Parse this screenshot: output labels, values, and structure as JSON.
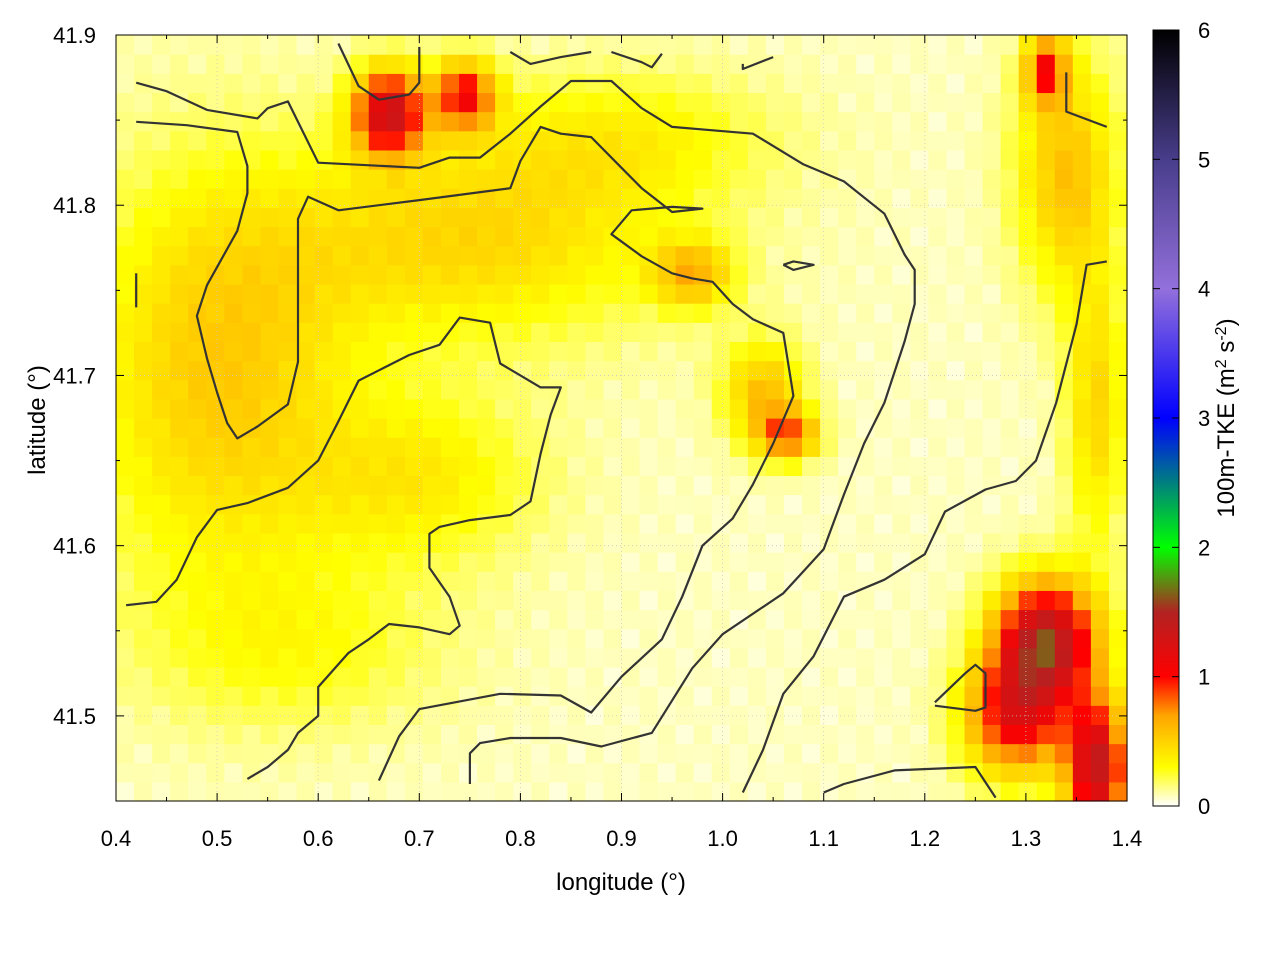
{
  "chart_data": {
    "type": "heatmap",
    "title": "",
    "xlabel": "longitude (°)",
    "ylabel": "latitude (°)",
    "xlim": [
      0.4,
      1.4
    ],
    "ylim": [
      41.45,
      41.9
    ],
    "x_ticks": [
      "0.4",
      "0.5",
      "0.6",
      "0.7",
      "0.8",
      "0.9",
      "1.0",
      "1.1",
      "1.2",
      "1.3",
      "1.4"
    ],
    "y_ticks": [
      "41.5",
      "41.6",
      "41.7",
      "41.8",
      "41.9"
    ],
    "grid": true,
    "colorbar": {
      "label_prefix": "100m-TKE (m",
      "label_sup1": "2",
      "label_mid": " s",
      "label_sup2": "-2",
      "label_suffix": ")",
      "range": [
        0,
        6
      ],
      "ticks": [
        "0",
        "1",
        "2",
        "3",
        "4",
        "5",
        "6"
      ],
      "palette": [
        {
          "v": 0.0,
          "c": "#ffffff"
        },
        {
          "v": 0.3,
          "c": "#ffff00"
        },
        {
          "v": 0.7,
          "c": "#ffa500"
        },
        {
          "v": 1.0,
          "c": "#ff0000"
        },
        {
          "v": 1.5,
          "c": "#b22222"
        },
        {
          "v": 2.0,
          "c": "#00ff00"
        },
        {
          "v": 3.0,
          "c": "#0000ff"
        },
        {
          "v": 4.0,
          "c": "#9370db"
        },
        {
          "v": 5.0,
          "c": "#483d8b"
        },
        {
          "v": 6.0,
          "c": "#000000"
        }
      ]
    },
    "field_hotspots": [
      {
        "lon": 0.67,
        "lat": 41.855,
        "tke": 1.2,
        "rlon": 0.035,
        "rlat": 0.025
      },
      {
        "lon": 0.745,
        "lat": 41.865,
        "tke": 0.9,
        "rlon": 0.03,
        "rlat": 0.02
      },
      {
        "lon": 0.5,
        "lat": 41.7,
        "tke": 0.45,
        "rlon": 0.13,
        "rlat": 0.12
      },
      {
        "lon": 0.75,
        "lat": 41.78,
        "tke": 0.4,
        "rlon": 0.2,
        "rlat": 0.06
      },
      {
        "lon": 0.7,
        "lat": 41.64,
        "tke": 0.3,
        "rlon": 0.12,
        "rlat": 0.05
      },
      {
        "lon": 0.97,
        "lat": 41.76,
        "tke": 0.5,
        "rlon": 0.04,
        "rlat": 0.02
      },
      {
        "lon": 1.04,
        "lat": 41.69,
        "tke": 0.5,
        "rlon": 0.04,
        "rlat": 0.03
      },
      {
        "lon": 1.065,
        "lat": 41.665,
        "tke": 0.7,
        "rlon": 0.03,
        "rlat": 0.015
      },
      {
        "lon": 1.32,
        "lat": 41.545,
        "tke": 1.4,
        "rlon": 0.05,
        "rlat": 0.035
      },
      {
        "lon": 1.29,
        "lat": 41.5,
        "tke": 1.0,
        "rlon": 0.05,
        "rlat": 0.035
      },
      {
        "lon": 1.37,
        "lat": 41.47,
        "tke": 1.3,
        "rlon": 0.03,
        "rlat": 0.04
      },
      {
        "lon": 1.34,
        "lat": 41.82,
        "tke": 0.5,
        "rlon": 0.05,
        "rlat": 0.07
      },
      {
        "lon": 1.32,
        "lat": 41.88,
        "tke": 0.8,
        "rlon": 0.02,
        "rlat": 0.02
      },
      {
        "lon": 1.37,
        "lat": 41.68,
        "tke": 0.4,
        "rlon": 0.03,
        "rlat": 0.08
      },
      {
        "lon": 0.58,
        "lat": 41.54,
        "tke": 0.2,
        "rlon": 0.15,
        "rlat": 0.05
      },
      {
        "lon": 0.9,
        "lat": 41.84,
        "tke": 0.25,
        "rlon": 0.15,
        "rlat": 0.04
      }
    ],
    "contours": [
      [
        [
          0.42,
          41.872
        ],
        [
          0.45,
          41.867
        ],
        [
          0.49,
          41.856
        ],
        [
          0.54,
          41.851
        ],
        [
          0.55,
          41.857
        ],
        [
          0.57,
          41.861
        ],
        [
          0.6,
          41.825
        ],
        [
          0.7,
          41.822
        ],
        [
          0.73,
          41.828
        ],
        [
          0.76,
          41.828
        ],
        [
          0.79,
          41.842
        ],
        [
          0.82,
          41.858
        ],
        [
          0.85,
          41.873
        ],
        [
          0.89,
          41.873
        ],
        [
          0.92,
          41.857
        ],
        [
          0.95,
          41.846
        ],
        [
          1.03,
          41.842
        ],
        [
          1.08,
          41.824
        ],
        [
          1.12,
          41.814
        ],
        [
          1.16,
          41.795
        ],
        [
          1.18,
          41.771
        ],
        [
          1.19,
          41.762
        ],
        [
          1.19,
          41.742
        ],
        [
          1.18,
          41.72
        ],
        [
          1.16,
          41.684
        ],
        [
          1.14,
          41.66
        ],
        [
          1.12,
          41.63
        ],
        [
          1.1,
          41.598
        ],
        [
          1.08,
          41.585
        ],
        [
          1.06,
          41.572
        ],
        [
          1.0,
          41.548
        ],
        [
          0.97,
          41.528
        ],
        [
          0.93,
          41.49
        ],
        [
          0.88,
          41.482
        ],
        [
          0.84,
          41.487
        ],
        [
          0.79,
          41.487
        ],
        [
          0.76,
          41.484
        ],
        [
          0.75,
          41.478
        ],
        [
          0.75,
          41.46
        ]
      ],
      [
        [
          0.42,
          41.849
        ],
        [
          0.47,
          41.847
        ],
        [
          0.52,
          41.843
        ],
        [
          0.53,
          41.823
        ],
        [
          0.53,
          41.807
        ],
        [
          0.52,
          41.785
        ],
        [
          0.49,
          41.753
        ],
        [
          0.48,
          41.735
        ],
        [
          0.49,
          41.71
        ],
        [
          0.5,
          41.69
        ],
        [
          0.51,
          41.672
        ],
        [
          0.52,
          41.663
        ],
        [
          0.54,
          41.67
        ],
        [
          0.57,
          41.683
        ],
        [
          0.58,
          41.708
        ],
        [
          0.58,
          41.745
        ],
        [
          0.58,
          41.792
        ],
        [
          0.59,
          41.805
        ],
        [
          0.62,
          41.797
        ],
        [
          0.7,
          41.803
        ],
        [
          0.79,
          41.81
        ],
        [
          0.8,
          41.826
        ],
        [
          0.82,
          41.846
        ],
        [
          0.84,
          41.842
        ],
        [
          0.87,
          41.84
        ],
        [
          0.9,
          41.822
        ],
        [
          0.92,
          41.81
        ],
        [
          0.95,
          41.796
        ],
        [
          0.98,
          41.798
        ],
        [
          0.95,
          41.799
        ],
        [
          0.91,
          41.797
        ],
        [
          0.89,
          41.783
        ],
        [
          0.92,
          41.77
        ],
        [
          0.95,
          41.76
        ],
        [
          0.97,
          41.757
        ],
        [
          0.99,
          41.755
        ],
        [
          1.01,
          41.742
        ],
        [
          1.03,
          41.733
        ],
        [
          1.06,
          41.725
        ],
        [
          1.07,
          41.688
        ],
        [
          1.05,
          41.66
        ],
        [
          1.03,
          41.636
        ],
        [
          1.01,
          41.616
        ],
        [
          0.98,
          41.6
        ],
        [
          0.96,
          41.57
        ],
        [
          0.94,
          41.545
        ],
        [
          0.9,
          41.523
        ],
        [
          0.87,
          41.502
        ],
        [
          0.84,
          41.512
        ],
        [
          0.78,
          41.513
        ],
        [
          0.7,
          41.504
        ],
        [
          0.68,
          41.488
        ],
        [
          0.66,
          41.462
        ]
      ],
      [
        [
          0.41,
          41.565
        ],
        [
          0.44,
          41.567
        ],
        [
          0.46,
          41.58
        ],
        [
          0.48,
          41.605
        ],
        [
          0.5,
          41.621
        ],
        [
          0.53,
          41.625
        ],
        [
          0.57,
          41.634
        ],
        [
          0.6,
          41.65
        ],
        [
          0.62,
          41.673
        ],
        [
          0.64,
          41.697
        ],
        [
          0.66,
          41.703
        ],
        [
          0.69,
          41.712
        ],
        [
          0.72,
          41.718
        ],
        [
          0.74,
          41.734
        ],
        [
          0.77,
          41.731
        ],
        [
          0.78,
          41.707
        ],
        [
          0.82,
          41.693
        ],
        [
          0.84,
          41.693
        ],
        [
          0.83,
          41.677
        ],
        [
          0.82,
          41.654
        ],
        [
          0.81,
          41.626
        ],
        [
          0.79,
          41.618
        ],
        [
          0.75,
          41.615
        ],
        [
          0.72,
          41.611
        ],
        [
          0.71,
          41.607
        ],
        [
          0.71,
          41.587
        ],
        [
          0.73,
          41.57
        ],
        [
          0.74,
          41.553
        ],
        [
          0.73,
          41.548
        ],
        [
          0.7,
          41.552
        ],
        [
          0.67,
          41.554
        ],
        [
          0.65,
          41.545
        ],
        [
          0.63,
          41.537
        ],
        [
          0.6,
          41.517
        ],
        [
          0.6,
          41.5
        ],
        [
          0.58,
          41.49
        ],
        [
          0.57,
          41.48
        ],
        [
          0.55,
          41.47
        ],
        [
          0.53,
          41.463
        ]
      ],
      [
        [
          1.1,
          41.455
        ],
        [
          1.12,
          41.46
        ],
        [
          1.17,
          41.468
        ],
        [
          1.25,
          41.47
        ],
        [
          1.27,
          41.452
        ]
      ],
      [
        [
          1.21,
          41.508
        ],
        [
          1.24,
          41.525
        ],
        [
          1.25,
          41.53
        ],
        [
          1.26,
          41.525
        ],
        [
          1.26,
          41.505
        ],
        [
          1.25,
          41.503
        ],
        [
          1.21,
          41.506
        ]
      ],
      [
        [
          1.02,
          41.455
        ],
        [
          1.04,
          41.48
        ],
        [
          1.06,
          41.513
        ],
        [
          1.09,
          41.535
        ],
        [
          1.12,
          41.57
        ],
        [
          1.16,
          41.58
        ],
        [
          1.2,
          41.595
        ],
        [
          1.22,
          41.62
        ],
        [
          1.26,
          41.633
        ],
        [
          1.29,
          41.638
        ],
        [
          1.31,
          41.65
        ],
        [
          1.33,
          41.684
        ],
        [
          1.35,
          41.73
        ],
        [
          1.36,
          41.765
        ],
        [
          1.38,
          41.767
        ]
      ],
      [
        [
          1.34,
          41.878
        ],
        [
          1.34,
          41.855
        ],
        [
          1.38,
          41.846
        ]
      ],
      [
        [
          0.62,
          41.895
        ],
        [
          0.64,
          41.87
        ],
        [
          0.66,
          41.862
        ],
        [
          0.69,
          41.865
        ],
        [
          0.7,
          41.872
        ],
        [
          0.7,
          41.893
        ]
      ],
      [
        [
          0.79,
          41.89
        ],
        [
          0.81,
          41.883
        ],
        [
          0.84,
          41.887
        ],
        [
          0.87,
          41.89
        ]
      ],
      [
        [
          0.89,
          41.89
        ],
        [
          0.92,
          41.884
        ],
        [
          0.93,
          41.881
        ],
        [
          0.94,
          41.889
        ]
      ],
      [
        [
          1.02,
          41.883
        ],
        [
          1.02,
          41.88
        ],
        [
          1.05,
          41.887
        ]
      ],
      [
        [
          0.42,
          41.76
        ],
        [
          0.42,
          41.75
        ],
        [
          0.42,
          41.74
        ]
      ],
      [
        [
          1.06,
          41.765
        ],
        [
          1.07,
          41.767
        ],
        [
          1.09,
          41.765
        ],
        [
          1.07,
          41.762
        ],
        [
          1.06,
          41.765
        ]
      ]
    ]
  }
}
